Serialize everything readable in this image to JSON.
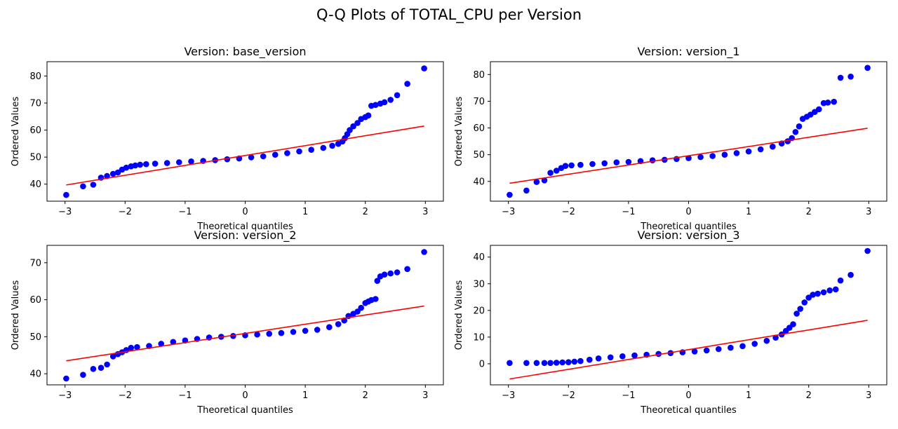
{
  "figure": {
    "title": "Q-Q Plots of TOTAL_CPU per Version"
  },
  "colors": {
    "points": "#0000ff",
    "fit_line": "#ff0000",
    "axes": "#000000"
  },
  "chart_data": [
    {
      "type": "scatter",
      "title": "Version: base_version",
      "xlabel": "Theoretical quantiles",
      "ylabel": "Ordered Values",
      "xlim": [
        -3.3,
        3.3
      ],
      "ylim": [
        33.7,
        85.3
      ],
      "xticks": [
        -3,
        -2,
        -1,
        0,
        1,
        2,
        3
      ],
      "yticks": [
        40,
        50,
        60,
        70,
        80
      ],
      "fit_line": {
        "x": [
          -2.98,
          2.98
        ],
        "y": [
          39.7,
          61.5
        ]
      },
      "points": [
        [
          -2.98,
          36.0
        ],
        [
          -2.7,
          39.2
        ],
        [
          -2.53,
          39.8
        ],
        [
          -2.4,
          42.4
        ],
        [
          -2.3,
          43.0
        ],
        [
          -2.2,
          43.8
        ],
        [
          -2.12,
          44.3
        ],
        [
          -2.05,
          45.4
        ],
        [
          -1.98,
          46.1
        ],
        [
          -1.9,
          46.6
        ],
        [
          -1.83,
          46.9
        ],
        [
          -1.75,
          47.2
        ],
        [
          -1.65,
          47.4
        ],
        [
          -1.5,
          47.6
        ],
        [
          -1.3,
          47.8
        ],
        [
          -1.1,
          48.1
        ],
        [
          -0.9,
          48.4
        ],
        [
          -0.7,
          48.6
        ],
        [
          -0.5,
          48.9
        ],
        [
          -0.3,
          49.2
        ],
        [
          -0.1,
          49.5
        ],
        [
          0.1,
          49.9
        ],
        [
          0.3,
          50.3
        ],
        [
          0.5,
          50.9
        ],
        [
          0.7,
          51.5
        ],
        [
          0.9,
          52.1
        ],
        [
          1.1,
          52.7
        ],
        [
          1.3,
          53.4
        ],
        [
          1.45,
          54.2
        ],
        [
          1.55,
          54.9
        ],
        [
          1.62,
          55.8
        ],
        [
          1.66,
          57.0
        ],
        [
          1.7,
          58.5
        ],
        [
          1.74,
          60.0
        ],
        [
          1.8,
          61.4
        ],
        [
          1.87,
          62.6
        ],
        [
          1.93,
          64.1
        ],
        [
          2.0,
          64.8
        ],
        [
          2.05,
          65.4
        ],
        [
          2.1,
          69.0
        ],
        [
          2.17,
          69.3
        ],
        [
          2.25,
          69.8
        ],
        [
          2.32,
          70.3
        ],
        [
          2.42,
          71.2
        ],
        [
          2.53,
          72.9
        ],
        [
          2.7,
          77.1
        ],
        [
          2.98,
          82.8
        ]
      ]
    },
    {
      "type": "scatter",
      "title": "Version: version_1",
      "xlabel": "Theoretical quantiles",
      "ylabel": "Ordered Values",
      "xlim": [
        -3.3,
        3.3
      ],
      "ylim": [
        32.6,
        84.8
      ],
      "xticks": [
        -3,
        -2,
        -1,
        0,
        1,
        2,
        3
      ],
      "yticks": [
        40,
        50,
        60,
        70,
        80
      ],
      "fit_line": {
        "x": [
          -2.98,
          2.98
        ],
        "y": [
          39.3,
          59.9
        ]
      },
      "points": [
        [
          -2.98,
          35.0
        ],
        [
          -2.7,
          36.6
        ],
        [
          -2.53,
          39.8
        ],
        [
          -2.4,
          40.4
        ],
        [
          -2.3,
          43.2
        ],
        [
          -2.2,
          44.0
        ],
        [
          -2.12,
          45.0
        ],
        [
          -2.05,
          45.8
        ],
        [
          -1.95,
          46.0
        ],
        [
          -1.8,
          46.2
        ],
        [
          -1.6,
          46.5
        ],
        [
          -1.4,
          46.8
        ],
        [
          -1.2,
          47.1
        ],
        [
          -1.0,
          47.3
        ],
        [
          -0.8,
          47.6
        ],
        [
          -0.6,
          47.9
        ],
        [
          -0.4,
          48.1
        ],
        [
          -0.2,
          48.4
        ],
        [
          0.0,
          48.7
        ],
        [
          0.2,
          49.1
        ],
        [
          0.4,
          49.5
        ],
        [
          0.6,
          50.0
        ],
        [
          0.8,
          50.6
        ],
        [
          1.0,
          51.2
        ],
        [
          1.2,
          52.0
        ],
        [
          1.4,
          53.0
        ],
        [
          1.55,
          54.2
        ],
        [
          1.65,
          55.0
        ],
        [
          1.72,
          56.2
        ],
        [
          1.78,
          58.5
        ],
        [
          1.84,
          60.6
        ],
        [
          1.9,
          63.4
        ],
        [
          1.97,
          64.2
        ],
        [
          2.03,
          65.0
        ],
        [
          2.1,
          66.0
        ],
        [
          2.17,
          67.0
        ],
        [
          2.25,
          69.3
        ],
        [
          2.32,
          69.5
        ],
        [
          2.42,
          69.8
        ],
        [
          2.53,
          78.8
        ],
        [
          2.7,
          79.2
        ],
        [
          2.98,
          82.5
        ]
      ]
    },
    {
      "type": "scatter",
      "title": "Version: version_2",
      "xlabel": "Theoretical quantiles",
      "ylabel": "Ordered Values",
      "xlim": [
        -3.3,
        3.3
      ],
      "ylim": [
        37.0,
        74.7
      ],
      "xticks": [
        -3,
        -2,
        -1,
        0,
        1,
        2,
        3
      ],
      "yticks": [
        40,
        50,
        60,
        70
      ],
      "fit_line": {
        "x": [
          -2.98,
          2.98
        ],
        "y": [
          43.5,
          58.3
        ]
      },
      "points": [
        [
          -2.98,
          38.7
        ],
        [
          -2.7,
          39.7
        ],
        [
          -2.53,
          41.3
        ],
        [
          -2.4,
          41.6
        ],
        [
          -2.3,
          42.5
        ],
        [
          -2.2,
          44.7
        ],
        [
          -2.12,
          45.3
        ],
        [
          -2.05,
          45.8
        ],
        [
          -1.98,
          46.4
        ],
        [
          -1.9,
          47.0
        ],
        [
          -1.8,
          47.2
        ],
        [
          -1.6,
          47.5
        ],
        [
          -1.4,
          48.1
        ],
        [
          -1.2,
          48.6
        ],
        [
          -1.0,
          49.0
        ],
        [
          -0.8,
          49.4
        ],
        [
          -0.6,
          49.8
        ],
        [
          -0.4,
          50.0
        ],
        [
          -0.2,
          50.2
        ],
        [
          0.0,
          50.4
        ],
        [
          0.2,
          50.6
        ],
        [
          0.4,
          50.8
        ],
        [
          0.6,
          51.0
        ],
        [
          0.8,
          51.3
        ],
        [
          1.0,
          51.6
        ],
        [
          1.2,
          51.9
        ],
        [
          1.4,
          52.6
        ],
        [
          1.55,
          53.4
        ],
        [
          1.65,
          54.4
        ],
        [
          1.72,
          55.6
        ],
        [
          1.8,
          56.2
        ],
        [
          1.87,
          56.8
        ],
        [
          1.93,
          57.8
        ],
        [
          2.0,
          59.1
        ],
        [
          2.05,
          59.5
        ],
        [
          2.1,
          59.9
        ],
        [
          2.17,
          60.2
        ],
        [
          2.2,
          65.1
        ],
        [
          2.25,
          66.3
        ],
        [
          2.32,
          66.8
        ],
        [
          2.42,
          67.1
        ],
        [
          2.53,
          67.4
        ],
        [
          2.7,
          68.3
        ],
        [
          2.98,
          72.9
        ]
      ]
    },
    {
      "type": "scatter",
      "title": "Version: version_3",
      "xlabel": "Theoretical quantiles",
      "ylabel": "Ordered Values",
      "xlim": [
        -3.3,
        3.3
      ],
      "ylim": [
        -7.9,
        44.4
      ],
      "xticks": [
        -3,
        -2,
        -1,
        0,
        1,
        2,
        3
      ],
      "yticks": [
        0,
        10,
        20,
        30,
        40
      ],
      "fit_line": {
        "x": [
          -2.98,
          2.98
        ],
        "y": [
          -5.7,
          16.3
        ]
      },
      "points": [
        [
          -2.98,
          0.3
        ],
        [
          -2.7,
          0.3
        ],
        [
          -2.53,
          0.3
        ],
        [
          -2.4,
          0.3
        ],
        [
          -2.3,
          0.3
        ],
        [
          -2.2,
          0.4
        ],
        [
          -2.1,
          0.5
        ],
        [
          -2.0,
          0.6
        ],
        [
          -1.9,
          0.8
        ],
        [
          -1.8,
          1.0
        ],
        [
          -1.65,
          1.5
        ],
        [
          -1.5,
          2.0
        ],
        [
          -1.3,
          2.4
        ],
        [
          -1.1,
          2.8
        ],
        [
          -0.9,
          3.1
        ],
        [
          -0.7,
          3.4
        ],
        [
          -0.5,
          3.7
        ],
        [
          -0.3,
          4.0
        ],
        [
          -0.1,
          4.3
        ],
        [
          0.1,
          4.6
        ],
        [
          0.3,
          5.0
        ],
        [
          0.5,
          5.5
        ],
        [
          0.7,
          6.0
        ],
        [
          0.9,
          6.6
        ],
        [
          1.1,
          7.5
        ],
        [
          1.3,
          8.6
        ],
        [
          1.45,
          9.8
        ],
        [
          1.55,
          11.0
        ],
        [
          1.62,
          12.3
        ],
        [
          1.68,
          13.5
        ],
        [
          1.74,
          14.8
        ],
        [
          1.8,
          18.8
        ],
        [
          1.86,
          20.6
        ],
        [
          1.93,
          23.0
        ],
        [
          2.0,
          24.8
        ],
        [
          2.07,
          25.9
        ],
        [
          2.15,
          26.3
        ],
        [
          2.25,
          26.8
        ],
        [
          2.35,
          27.5
        ],
        [
          2.45,
          27.9
        ],
        [
          2.53,
          31.2
        ],
        [
          2.7,
          33.3
        ],
        [
          2.98,
          42.3
        ]
      ]
    }
  ]
}
